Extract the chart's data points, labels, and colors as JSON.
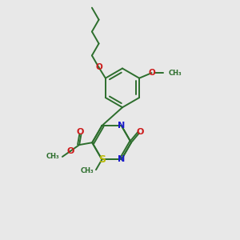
{
  "bg_color": "#e8e8e8",
  "bond_color": "#2d6e2d",
  "N_color": "#1a1acc",
  "O_color": "#cc1a1a",
  "S_color": "#b8b800",
  "line_width": 1.4,
  "font_size": 7.5,
  "fig_w": 3.0,
  "fig_h": 3.0,
  "dpi": 100,
  "xlim": [
    0,
    10
  ],
  "ylim": [
    0,
    10
  ]
}
